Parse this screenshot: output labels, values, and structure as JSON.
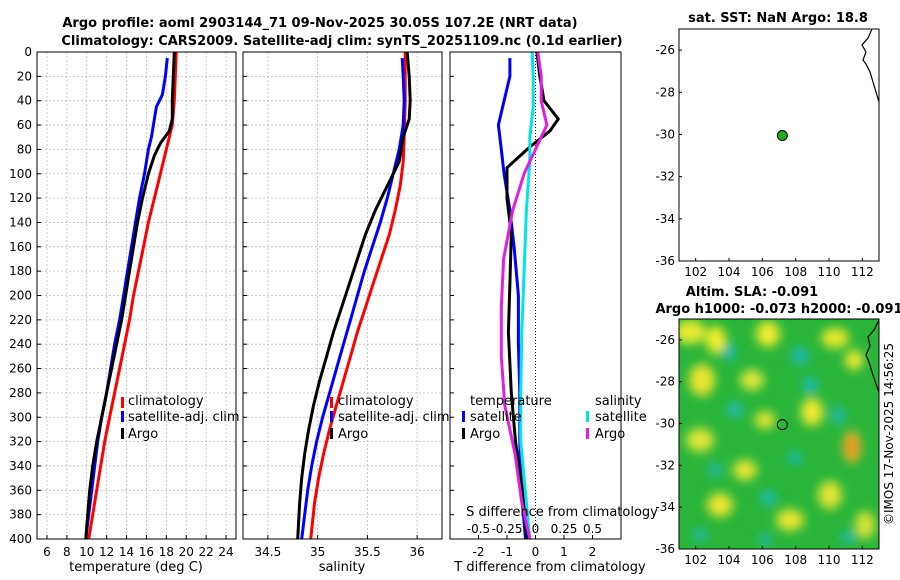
{
  "header": {
    "title_line1": "Argo profile: aoml 2903144_71 09-Nov-2025 30.05S 107.2E (NRT data)",
    "title_line2": "Climatology: CARS2009. Satellite-adj clim: synTS_20251109.nc (0.1d earlier)"
  },
  "colors": {
    "climatology": "#ff0000",
    "satellite": "#0000ff",
    "argo": "#000000",
    "satellite_sal": "#00e5e5",
    "argo_sal": "#e020e0",
    "marker": "#22aa22"
  },
  "chart_data": [
    {
      "type": "line",
      "title": "",
      "xlabel": "temperature (deg C)",
      "ylabel": "",
      "xlim": [
        5,
        25
      ],
      "ylim": [
        400,
        0
      ],
      "xticks": [
        "6",
        "8",
        "10",
        "12",
        "14",
        "16",
        "18",
        "20",
        "22",
        "24"
      ],
      "yticks": [
        "0",
        "20",
        "40",
        "60",
        "80",
        "100",
        "120",
        "140",
        "160",
        "180",
        "200",
        "220",
        "240",
        "260",
        "280",
        "300",
        "320",
        "340",
        "360",
        "380",
        "400"
      ],
      "grid": true,
      "legend": {
        "placement": "bottom-right",
        "entries": [
          "climatology",
          "satellite-adj. clim",
          "Argo"
        ]
      },
      "series": [
        {
          "name": "climatology",
          "color": "#ff0000",
          "points": [
            [
              19.0,
              0
            ],
            [
              18.9,
              20
            ],
            [
              18.8,
              40
            ],
            [
              18.6,
              60
            ],
            [
              18.3,
              70
            ],
            [
              18.0,
              80
            ],
            [
              17.4,
              100
            ],
            [
              16.8,
              120
            ],
            [
              16.2,
              140
            ],
            [
              15.7,
              160
            ],
            [
              15.2,
              180
            ],
            [
              14.7,
              200
            ],
            [
              14.3,
              220
            ],
            [
              13.8,
              240
            ],
            [
              13.3,
              260
            ],
            [
              12.8,
              280
            ],
            [
              12.3,
              300
            ],
            [
              11.8,
              320
            ],
            [
              11.4,
              340
            ],
            [
              11.0,
              360
            ],
            [
              10.6,
              380
            ],
            [
              10.2,
              400
            ]
          ]
        },
        {
          "name": "satellite-adj. clim",
          "color": "#0000ff",
          "points": [
            [
              18.1,
              5
            ],
            [
              17.9,
              20
            ],
            [
              17.6,
              35
            ],
            [
              17.0,
              45
            ],
            [
              16.7,
              60
            ],
            [
              16.5,
              70
            ],
            [
              16.2,
              80
            ],
            [
              15.8,
              100
            ],
            [
              15.3,
              120
            ],
            [
              14.9,
              140
            ],
            [
              14.5,
              160
            ],
            [
              14.1,
              180
            ],
            [
              13.7,
              200
            ],
            [
              13.3,
              220
            ],
            [
              12.8,
              240
            ],
            [
              12.4,
              260
            ],
            [
              12.0,
              280
            ],
            [
              11.5,
              300
            ],
            [
              11.1,
              320
            ],
            [
              10.8,
              340
            ],
            [
              10.5,
              360
            ],
            [
              10.2,
              380
            ],
            [
              9.9,
              400
            ]
          ]
        },
        {
          "name": "Argo",
          "color": "#000000",
          "points": [
            [
              18.8,
              0
            ],
            [
              18.7,
              20
            ],
            [
              18.6,
              40
            ],
            [
              18.6,
              55
            ],
            [
              18.3,
              65
            ],
            [
              17.4,
              75
            ],
            [
              16.8,
              85
            ],
            [
              16.2,
              100
            ],
            [
              15.6,
              120
            ],
            [
              15.1,
              140
            ],
            [
              14.7,
              160
            ],
            [
              14.3,
              180
            ],
            [
              13.9,
              200
            ],
            [
              13.5,
              220
            ],
            [
              13.0,
              240
            ],
            [
              12.5,
              260
            ],
            [
              12.0,
              280
            ],
            [
              11.5,
              300
            ],
            [
              11.0,
              320
            ],
            [
              10.6,
              340
            ],
            [
              10.3,
              360
            ],
            [
              10.1,
              380
            ],
            [
              9.9,
              400
            ]
          ]
        }
      ]
    },
    {
      "type": "line",
      "title": "",
      "xlabel": "salinity",
      "ylabel": "",
      "xlim": [
        34.25,
        36.25
      ],
      "ylim": [
        400,
        0
      ],
      "xticks": [
        "34.5",
        "35",
        "35.5",
        "36"
      ],
      "grid": true,
      "legend": {
        "placement": "bottom-right",
        "entries": [
          "climatology",
          "satellite-adj. clim",
          "Argo"
        ]
      },
      "series": [
        {
          "name": "climatology",
          "color": "#ff0000",
          "points": [
            [
              35.88,
              0
            ],
            [
              35.88,
              40
            ],
            [
              35.87,
              70
            ],
            [
              35.86,
              90
            ],
            [
              35.83,
              110
            ],
            [
              35.78,
              130
            ],
            [
              35.72,
              150
            ],
            [
              35.64,
              170
            ],
            [
              35.56,
              190
            ],
            [
              35.48,
              210
            ],
            [
              35.4,
              230
            ],
            [
              35.33,
              250
            ],
            [
              35.26,
              270
            ],
            [
              35.19,
              290
            ],
            [
              35.12,
              310
            ],
            [
              35.06,
              330
            ],
            [
              35.01,
              350
            ],
            [
              34.97,
              370
            ],
            [
              34.93,
              400
            ]
          ]
        },
        {
          "name": "satellite-adj. clim",
          "color": "#0000ff",
          "points": [
            [
              35.85,
              5
            ],
            [
              35.86,
              20
            ],
            [
              35.87,
              40
            ],
            [
              35.86,
              60
            ],
            [
              35.82,
              80
            ],
            [
              35.76,
              100
            ],
            [
              35.7,
              120
            ],
            [
              35.63,
              140
            ],
            [
              35.55,
              160
            ],
            [
              35.47,
              180
            ],
            [
              35.4,
              200
            ],
            [
              35.33,
              220
            ],
            [
              35.26,
              240
            ],
            [
              35.19,
              260
            ],
            [
              35.12,
              280
            ],
            [
              35.05,
              300
            ],
            [
              34.99,
              320
            ],
            [
              34.94,
              340
            ],
            [
              34.9,
              360
            ],
            [
              34.87,
              380
            ],
            [
              34.84,
              400
            ]
          ]
        },
        {
          "name": "Argo",
          "color": "#000000",
          "points": [
            [
              35.9,
              0
            ],
            [
              35.92,
              20
            ],
            [
              35.93,
              40
            ],
            [
              35.92,
              55
            ],
            [
              35.86,
              70
            ],
            [
              35.82,
              90
            ],
            [
              35.7,
              110
            ],
            [
              35.58,
              130
            ],
            [
              35.48,
              150
            ],
            [
              35.4,
              170
            ],
            [
              35.32,
              190
            ],
            [
              35.24,
              210
            ],
            [
              35.16,
              230
            ],
            [
              35.09,
              250
            ],
            [
              35.02,
              270
            ],
            [
              34.96,
              290
            ],
            [
              34.91,
              310
            ],
            [
              34.87,
              330
            ],
            [
              34.84,
              350
            ],
            [
              34.82,
              370
            ],
            [
              34.8,
              400
            ]
          ]
        }
      ]
    },
    {
      "type": "line",
      "title": "",
      "xlabel": "T difference from climatology",
      "xlabel_top": "S difference from climatology",
      "ylabel": "",
      "xlim": [
        -3,
        3
      ],
      "ylim": [
        400,
        0
      ],
      "xticks": [
        "-2",
        "-1",
        "0",
        "1",
        "2"
      ],
      "sticks": [
        "-0.5",
        "-0.25",
        "0",
        "0.25",
        "0.5"
      ],
      "grid": false,
      "legend_temperature": {
        "heading": "temperature",
        "entries": [
          "satellite",
          "Argo"
        ]
      },
      "legend_salinity": {
        "heading": "salinity",
        "entries": [
          "satellite",
          "Argo"
        ]
      },
      "series": [
        {
          "name": "temperature satellite",
          "color": "#0000ff",
          "points": [
            [
              -0.9,
              5
            ],
            [
              -0.9,
              20
            ],
            [
              -1.1,
              40
            ],
            [
              -1.3,
              60
            ],
            [
              -1.2,
              80
            ],
            [
              -1.1,
              100
            ],
            [
              -0.9,
              130
            ],
            [
              -0.75,
              160
            ],
            [
              -0.6,
              200
            ],
            [
              -0.6,
              240
            ],
            [
              -0.55,
              280
            ],
            [
              -0.55,
              320
            ],
            [
              -0.5,
              360
            ],
            [
              -0.35,
              400
            ]
          ]
        },
        {
          "name": "temperature Argo",
          "color": "#000000",
          "points": [
            [
              0.05,
              0
            ],
            [
              0.15,
              20
            ],
            [
              0.3,
              40
            ],
            [
              0.8,
              55
            ],
            [
              0.5,
              65
            ],
            [
              -0.2,
              78
            ],
            [
              -1.0,
              95
            ],
            [
              -1.0,
              120
            ],
            [
              -0.85,
              150
            ],
            [
              -0.9,
              190
            ],
            [
              -0.95,
              230
            ],
            [
              -0.85,
              280
            ],
            [
              -0.7,
              320
            ],
            [
              -0.45,
              360
            ],
            [
              -0.3,
              400
            ]
          ]
        },
        {
          "name": "salinity satellite",
          "color": "#00e5e5",
          "points": [
            [
              -0.03,
              0
            ],
            [
              -0.02,
              20
            ],
            [
              -0.02,
              45
            ],
            [
              -0.05,
              70
            ],
            [
              -0.05,
              90
            ],
            [
              -0.08,
              130
            ],
            [
              -0.1,
              180
            ],
            [
              -0.12,
              230
            ],
            [
              -0.13,
              280
            ],
            [
              -0.13,
              320
            ],
            [
              -0.09,
              360
            ],
            [
              -0.05,
              400
            ]
          ]
        },
        {
          "name": "salinity Argo",
          "color": "#e020e0",
          "points": [
            [
              0.02,
              0
            ],
            [
              0.05,
              20
            ],
            [
              0.05,
              40
            ],
            [
              0.1,
              60
            ],
            [
              0.0,
              80
            ],
            [
              -0.1,
              100
            ],
            [
              -0.2,
              130
            ],
            [
              -0.28,
              170
            ],
            [
              -0.3,
              210
            ],
            [
              -0.3,
              250
            ],
            [
              -0.27,
              290
            ],
            [
              -0.18,
              330
            ],
            [
              -0.12,
              370
            ],
            [
              -0.05,
              400
            ]
          ]
        }
      ]
    },
    {
      "type": "scatter",
      "title": "sat. SST: NaN Argo: 18.8",
      "xlabel": "",
      "ylabel": "",
      "xlim": [
        101,
        113
      ],
      "ylim": [
        -36,
        -25
      ],
      "xticks": [
        "102",
        "104",
        "106",
        "108",
        "110",
        "112"
      ],
      "yticks": [
        "-26",
        "-28",
        "-30",
        "-32",
        "-34",
        "-36"
      ],
      "points": [
        {
          "x": 107.2,
          "y": -30.05,
          "color": "#22aa22"
        }
      ]
    },
    {
      "type": "heatmap",
      "title_line1": "Altim. SLA: -0.091",
      "title_line2": "Argo h1000: -0.073 h2000: -0.091",
      "xlabel": "",
      "ylabel": "",
      "xlim": [
        101,
        113
      ],
      "ylim": [
        -36,
        -25
      ],
      "xticks": [
        "102",
        "104",
        "106",
        "108",
        "110",
        "112"
      ],
      "yticks": [
        "-26",
        "-28",
        "-30",
        "-32",
        "-34",
        "-36"
      ],
      "points": [
        {
          "x": 107.2,
          "y": -30.05
        }
      ]
    }
  ],
  "footer": {
    "watermark": "©IMOS 17-Nov-2025 14:56:25"
  }
}
